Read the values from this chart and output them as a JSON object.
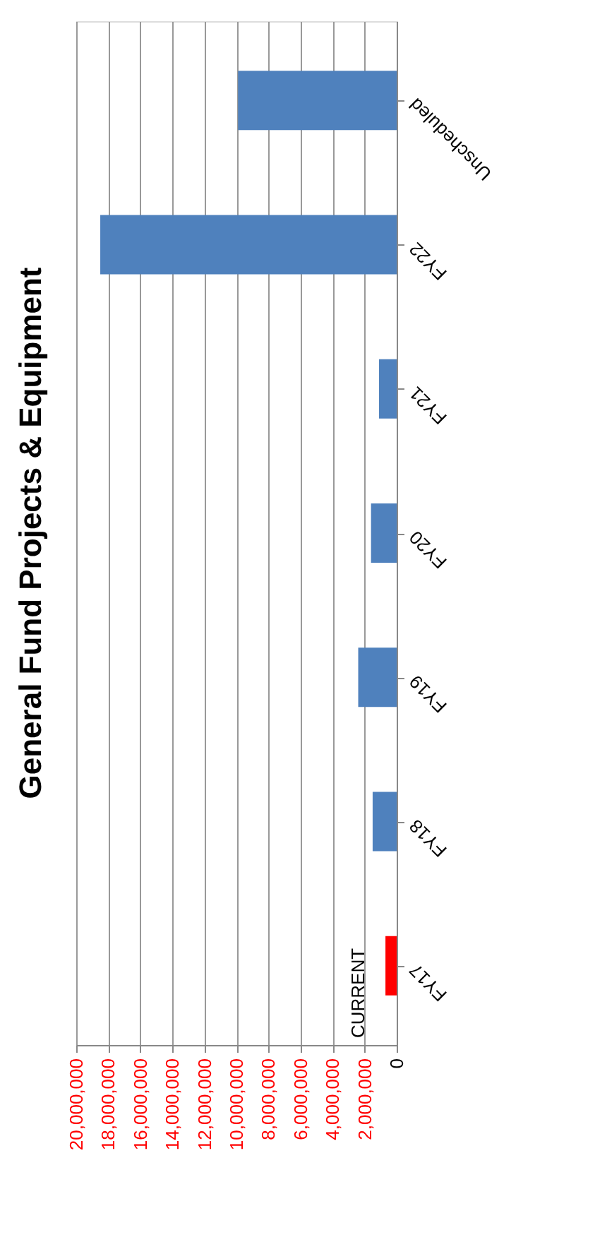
{
  "chart_data": {
    "type": "bar",
    "orientation": "horizontal",
    "title": "General Fund  Projects & Equipment",
    "categories": [
      "Unscheduled",
      "FY22",
      "FY21",
      "FY20",
      "FY19",
      "FY18",
      "FY17"
    ],
    "values": [
      9900000,
      18500000,
      1100000,
      1600000,
      2400000,
      1500000,
      700000
    ],
    "colors": [
      "#4f81bd",
      "#4f81bd",
      "#4f81bd",
      "#4f81bd",
      "#4f81bd",
      "#4f81bd",
      "#ff0000"
    ],
    "xlim": [
      20000000,
      0
    ],
    "xticks": [
      0,
      {
        "value": 2000000,
        "label": "2,000,000"
      },
      {
        "value": 4000000,
        "label": "4,000,000"
      },
      {
        "value": 6000000,
        "label": "6,000,000"
      },
      {
        "value": 8000000,
        "label": "8,000,000"
      },
      {
        "value": 10000000,
        "label": "10,000,000"
      },
      {
        "value": 12000000,
        "label": "12,000,000"
      },
      {
        "value": 14000000,
        "label": "14,000,000"
      },
      {
        "value": 16000000,
        "label": "16,000,000"
      },
      {
        "value": 18000000,
        "label": "18,000,000"
      },
      {
        "value": 20000000,
        "label": "20,000,000"
      }
    ],
    "grid": "x",
    "annotations": [
      "CURRENT"
    ]
  }
}
